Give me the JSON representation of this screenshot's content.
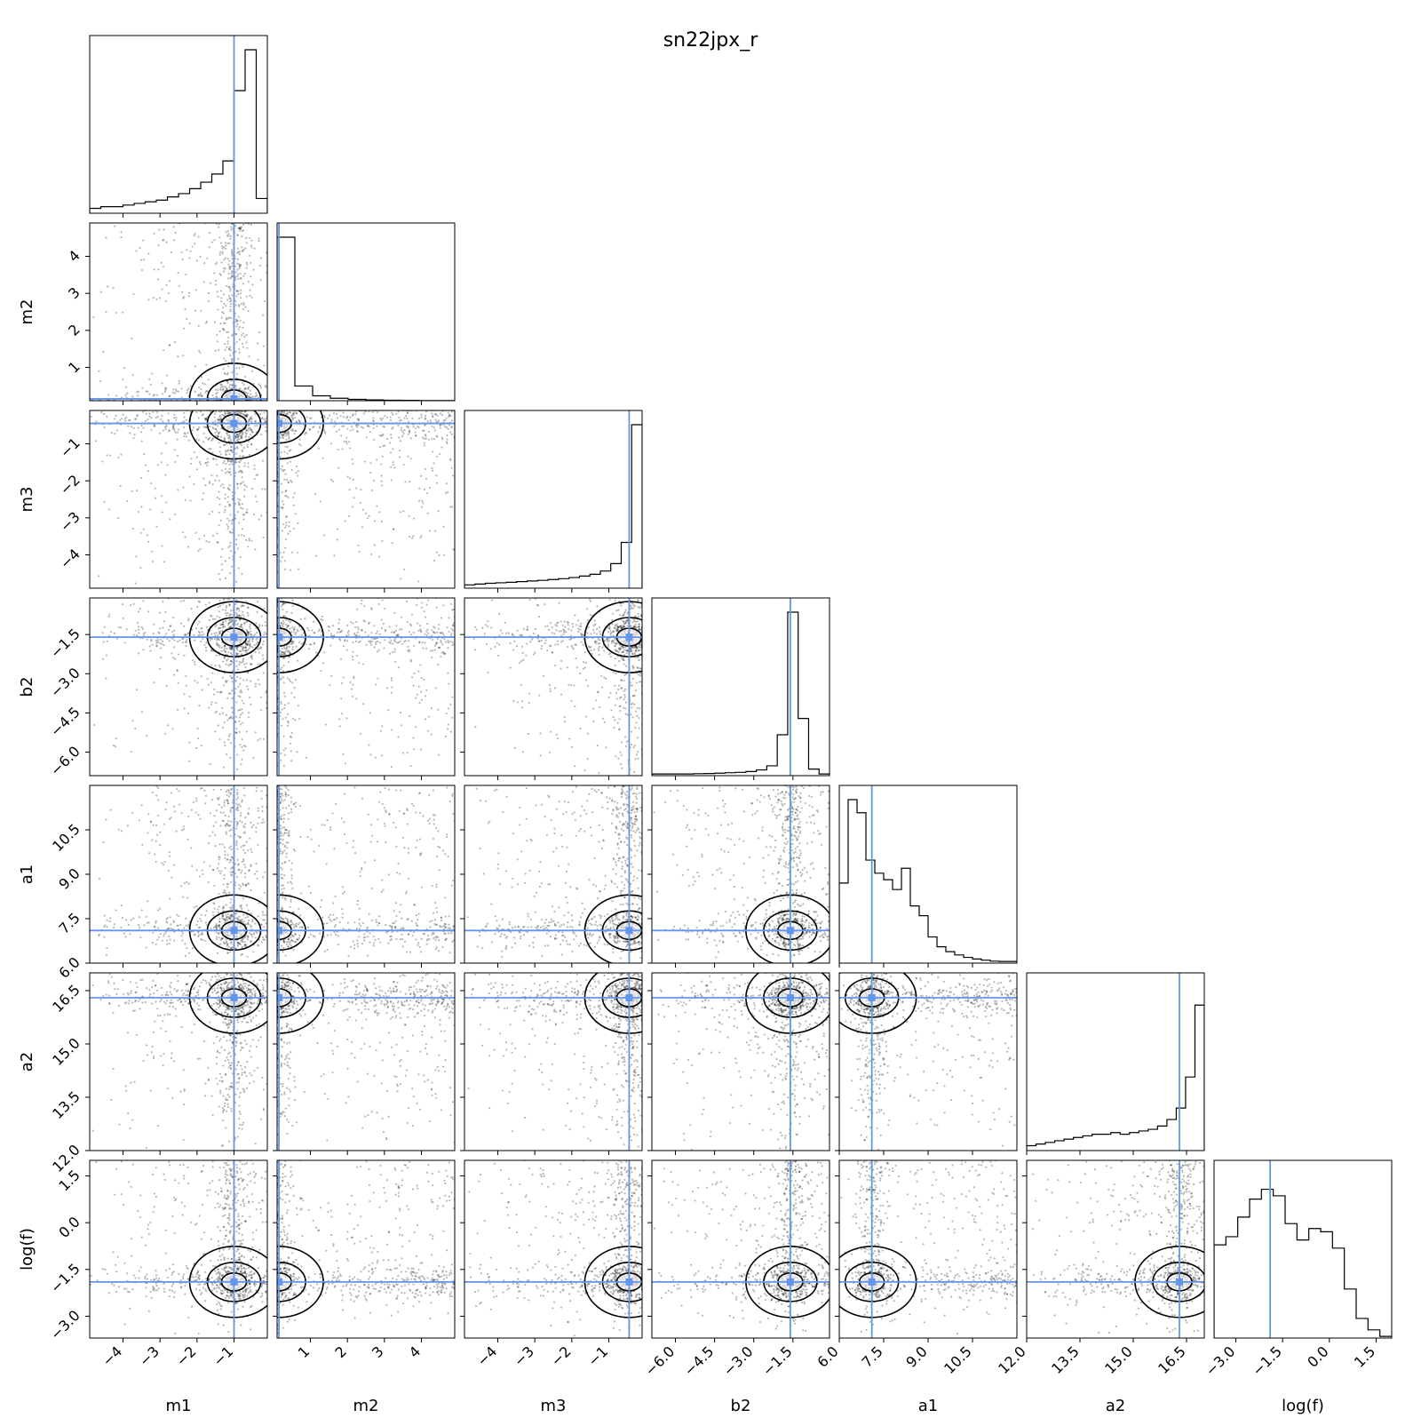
{
  "title": "sn22jpx_r",
  "chart_data": {
    "type": "corner",
    "title": "sn22jpx_r",
    "parameters": [
      {
        "name": "m1",
        "label": "m1",
        "range": [
          -4.9,
          -0.1
        ],
        "ticks": [
          -4,
          -3,
          -2,
          -1
        ],
        "tick_labels": [
          "−4",
          "−3",
          "−2",
          "−1"
        ],
        "truth": -1.0
      },
      {
        "name": "m2",
        "label": "m2",
        "range": [
          0.1,
          4.9
        ],
        "ticks": [
          1,
          2,
          3,
          4
        ],
        "tick_labels": [
          "1",
          "2",
          "3",
          "4"
        ],
        "truth": 0.15
      },
      {
        "name": "m3",
        "label": "m3",
        "range": [
          -4.9,
          -0.1
        ],
        "ticks": [
          -4,
          -3,
          -2,
          -1
        ],
        "tick_labels": [
          "−4",
          "−3",
          "−2",
          "−1"
        ],
        "truth": -0.45
      },
      {
        "name": "b2",
        "label": "b2",
        "range": [
          -6.9,
          -0.1
        ],
        "ticks": [
          -6.0,
          -4.5,
          -3.0,
          -1.5
        ],
        "tick_labels": [
          "−6.0",
          "−4.5",
          "−3.0",
          "−1.5"
        ],
        "truth": -1.6
      },
      {
        "name": "a1",
        "label": "a1",
        "range": [
          6.0,
          12.0
        ],
        "ticks": [
          6.0,
          7.5,
          9.0,
          10.5
        ],
        "tick_labels": [
          "6.0",
          "7.5",
          "9.0",
          "10.5"
        ],
        "truth": 7.1
      },
      {
        "name": "a2",
        "label": "a2",
        "range": [
          12.0,
          17.0
        ],
        "ticks": [
          12.0,
          13.5,
          15.0,
          16.5
        ],
        "tick_labels": [
          "12.0",
          "13.5",
          "15.0",
          "16.5"
        ],
        "truth": 16.3
      },
      {
        "name": "log(f)",
        "label": "log(f)",
        "range": [
          -3.7,
          2.0
        ],
        "ticks": [
          -3.0,
          -1.5,
          0.0,
          1.5
        ],
        "tick_labels": [
          "−3.0",
          "−1.5",
          "0.0",
          "1.5"
        ],
        "truth": -1.9
      }
    ],
    "histograms": [
      {
        "param": "m1",
        "counts": [
          3,
          4,
          4,
          5,
          6,
          7,
          8,
          10,
          12,
          15,
          19,
          24,
          32,
          75,
          100,
          9
        ]
      },
      {
        "param": "m2",
        "counts": [
          100,
          9,
          3,
          1.5,
          0.8,
          0.5,
          0.3,
          0.2,
          0.1,
          0.1
        ]
      },
      {
        "param": "m3",
        "counts": [
          2,
          2.5,
          3,
          3.3,
          3.6,
          4,
          4.4,
          4.8,
          5.3,
          5.8,
          6.5,
          7.4,
          8.5,
          10.5,
          15,
          28,
          100
        ]
      },
      {
        "param": "b2",
        "counts": [
          1,
          1,
          1,
          1,
          1.2,
          1.3,
          1.5,
          1.8,
          2,
          2.5,
          3.5,
          6,
          25,
          100,
          35,
          4,
          1
        ]
      },
      {
        "param": "a1",
        "counts": [
          49,
          100,
          92,
          63,
          55,
          51,
          45,
          58,
          35,
          29,
          16,
          10,
          7,
          5,
          3.5,
          2.5,
          1.8,
          1.2,
          1,
          1
        ]
      },
      {
        "param": "a2",
        "counts": [
          3,
          4,
          5,
          6,
          7,
          8,
          9,
          10,
          10,
          11,
          10,
          11,
          12,
          13,
          15,
          19,
          26,
          45,
          89
        ]
      },
      {
        "param": "log(f)",
        "counts": [
          57,
          62,
          74,
          85,
          91,
          87,
          70,
          60,
          67,
          65,
          55,
          30,
          12,
          5,
          1
        ]
      }
    ],
    "truth_color": "#6495ed",
    "grid": false
  }
}
